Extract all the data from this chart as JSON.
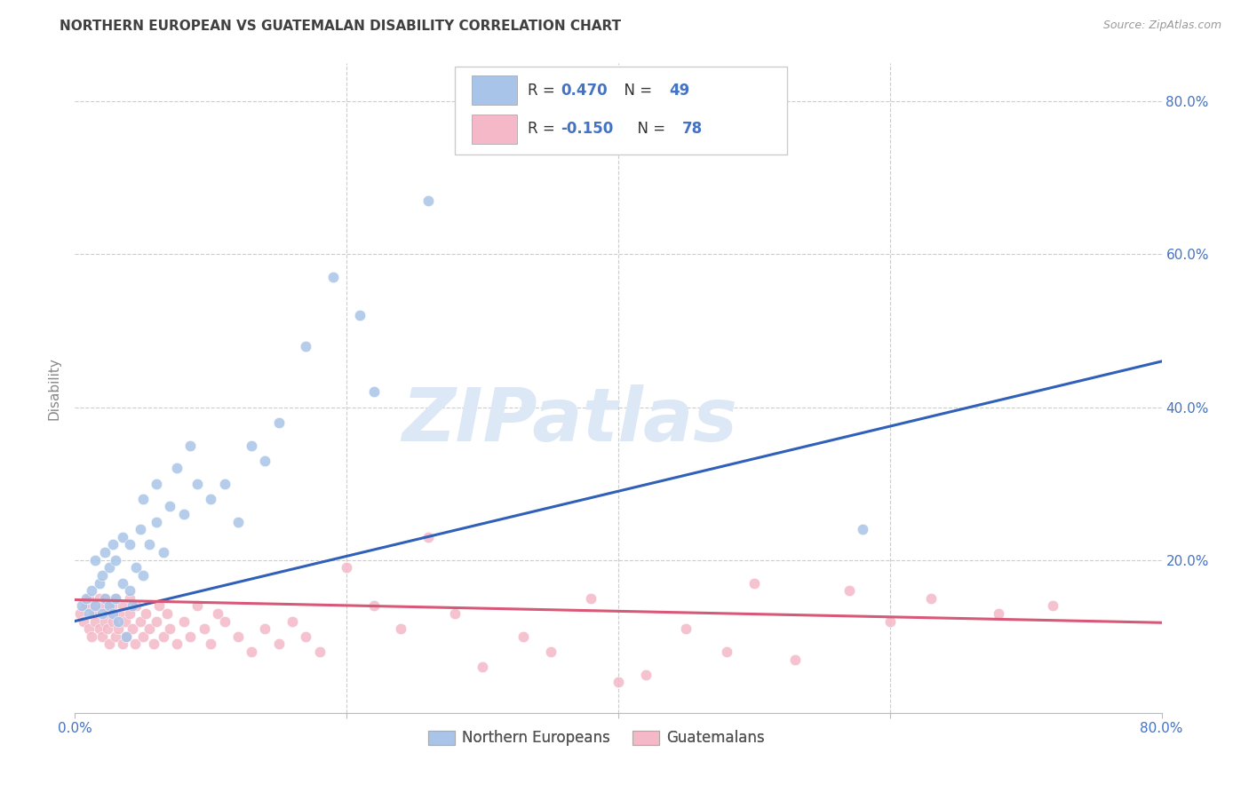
{
  "title": "NORTHERN EUROPEAN VS GUATEMALAN DISABILITY CORRELATION CHART",
  "source": "Source: ZipAtlas.com",
  "ylabel": "Disability",
  "watermark": "ZIPatlas",
  "xlim": [
    0.0,
    0.8
  ],
  "ylim": [
    0.0,
    0.85
  ],
  "xticks": [
    0.0,
    0.2,
    0.4,
    0.6,
    0.8
  ],
  "xticklabels": [
    "0.0%",
    "",
    "",
    "",
    "80.0%"
  ],
  "right_yticklabels": [
    "20.0%",
    "40.0%",
    "60.0%",
    "80.0%"
  ],
  "blue_R": "0.470",
  "blue_N": "49",
  "pink_R": "-0.150",
  "pink_N": "78",
  "blue_color": "#a8c4e8",
  "pink_color": "#f4b8c8",
  "blue_line_color": "#3060b8",
  "pink_line_color": "#d85878",
  "legend_label_blue": "Northern Europeans",
  "legend_label_pink": "Guatemalans",
  "blue_scatter_x": [
    0.005,
    0.008,
    0.01,
    0.012,
    0.015,
    0.015,
    0.018,
    0.02,
    0.02,
    0.022,
    0.022,
    0.025,
    0.025,
    0.028,
    0.028,
    0.03,
    0.03,
    0.032,
    0.035,
    0.035,
    0.038,
    0.04,
    0.04,
    0.042,
    0.045,
    0.048,
    0.05,
    0.05,
    0.055,
    0.06,
    0.06,
    0.065,
    0.07,
    0.075,
    0.08,
    0.085,
    0.09,
    0.1,
    0.11,
    0.12,
    0.13,
    0.14,
    0.15,
    0.17,
    0.19,
    0.21,
    0.22,
    0.26,
    0.58
  ],
  "blue_scatter_y": [
    0.14,
    0.15,
    0.13,
    0.16,
    0.14,
    0.2,
    0.17,
    0.13,
    0.18,
    0.15,
    0.21,
    0.14,
    0.19,
    0.13,
    0.22,
    0.15,
    0.2,
    0.12,
    0.17,
    0.23,
    0.1,
    0.16,
    0.22,
    0.14,
    0.19,
    0.24,
    0.18,
    0.28,
    0.22,
    0.25,
    0.3,
    0.21,
    0.27,
    0.32,
    0.26,
    0.35,
    0.3,
    0.28,
    0.3,
    0.25,
    0.35,
    0.33,
    0.38,
    0.48,
    0.57,
    0.52,
    0.42,
    0.67,
    0.24
  ],
  "pink_scatter_x": [
    0.004,
    0.006,
    0.008,
    0.01,
    0.01,
    0.012,
    0.014,
    0.015,
    0.015,
    0.018,
    0.018,
    0.02,
    0.02,
    0.022,
    0.022,
    0.024,
    0.025,
    0.025,
    0.027,
    0.028,
    0.03,
    0.03,
    0.032,
    0.033,
    0.035,
    0.035,
    0.037,
    0.038,
    0.04,
    0.04,
    0.042,
    0.044,
    0.045,
    0.048,
    0.05,
    0.052,
    0.055,
    0.058,
    0.06,
    0.062,
    0.065,
    0.068,
    0.07,
    0.075,
    0.08,
    0.085,
    0.09,
    0.095,
    0.1,
    0.105,
    0.11,
    0.12,
    0.13,
    0.14,
    0.15,
    0.16,
    0.17,
    0.18,
    0.2,
    0.22,
    0.24,
    0.26,
    0.28,
    0.3,
    0.33,
    0.35,
    0.38,
    0.4,
    0.42,
    0.45,
    0.48,
    0.5,
    0.53,
    0.57,
    0.6,
    0.63,
    0.68,
    0.72
  ],
  "pink_scatter_y": [
    0.13,
    0.12,
    0.14,
    0.11,
    0.15,
    0.1,
    0.13,
    0.12,
    0.14,
    0.11,
    0.15,
    0.1,
    0.14,
    0.12,
    0.15,
    0.11,
    0.13,
    0.09,
    0.14,
    0.12,
    0.1,
    0.15,
    0.11,
    0.13,
    0.09,
    0.14,
    0.12,
    0.1,
    0.13,
    0.15,
    0.11,
    0.09,
    0.14,
    0.12,
    0.1,
    0.13,
    0.11,
    0.09,
    0.12,
    0.14,
    0.1,
    0.13,
    0.11,
    0.09,
    0.12,
    0.1,
    0.14,
    0.11,
    0.09,
    0.13,
    0.12,
    0.1,
    0.08,
    0.11,
    0.09,
    0.12,
    0.1,
    0.08,
    0.19,
    0.14,
    0.11,
    0.23,
    0.13,
    0.06,
    0.1,
    0.08,
    0.15,
    0.04,
    0.05,
    0.11,
    0.08,
    0.17,
    0.07,
    0.16,
    0.12,
    0.15,
    0.13,
    0.14
  ],
  "blue_line_x": [
    0.0,
    0.8
  ],
  "blue_line_y_start": 0.12,
  "blue_line_y_end": 0.46,
  "pink_line_x": [
    0.0,
    0.8
  ],
  "pink_line_y_start": 0.148,
  "pink_line_y_end": 0.118,
  "background_color": "#ffffff",
  "grid_color": "#cccccc",
  "title_color": "#404040",
  "axis_label_color": "#888888",
  "tick_color": "#4472c4",
  "watermark_color": "#dce8f5",
  "watermark_fontsize": 60,
  "title_fontsize": 11,
  "source_fontsize": 9,
  "tick_fontsize": 11
}
